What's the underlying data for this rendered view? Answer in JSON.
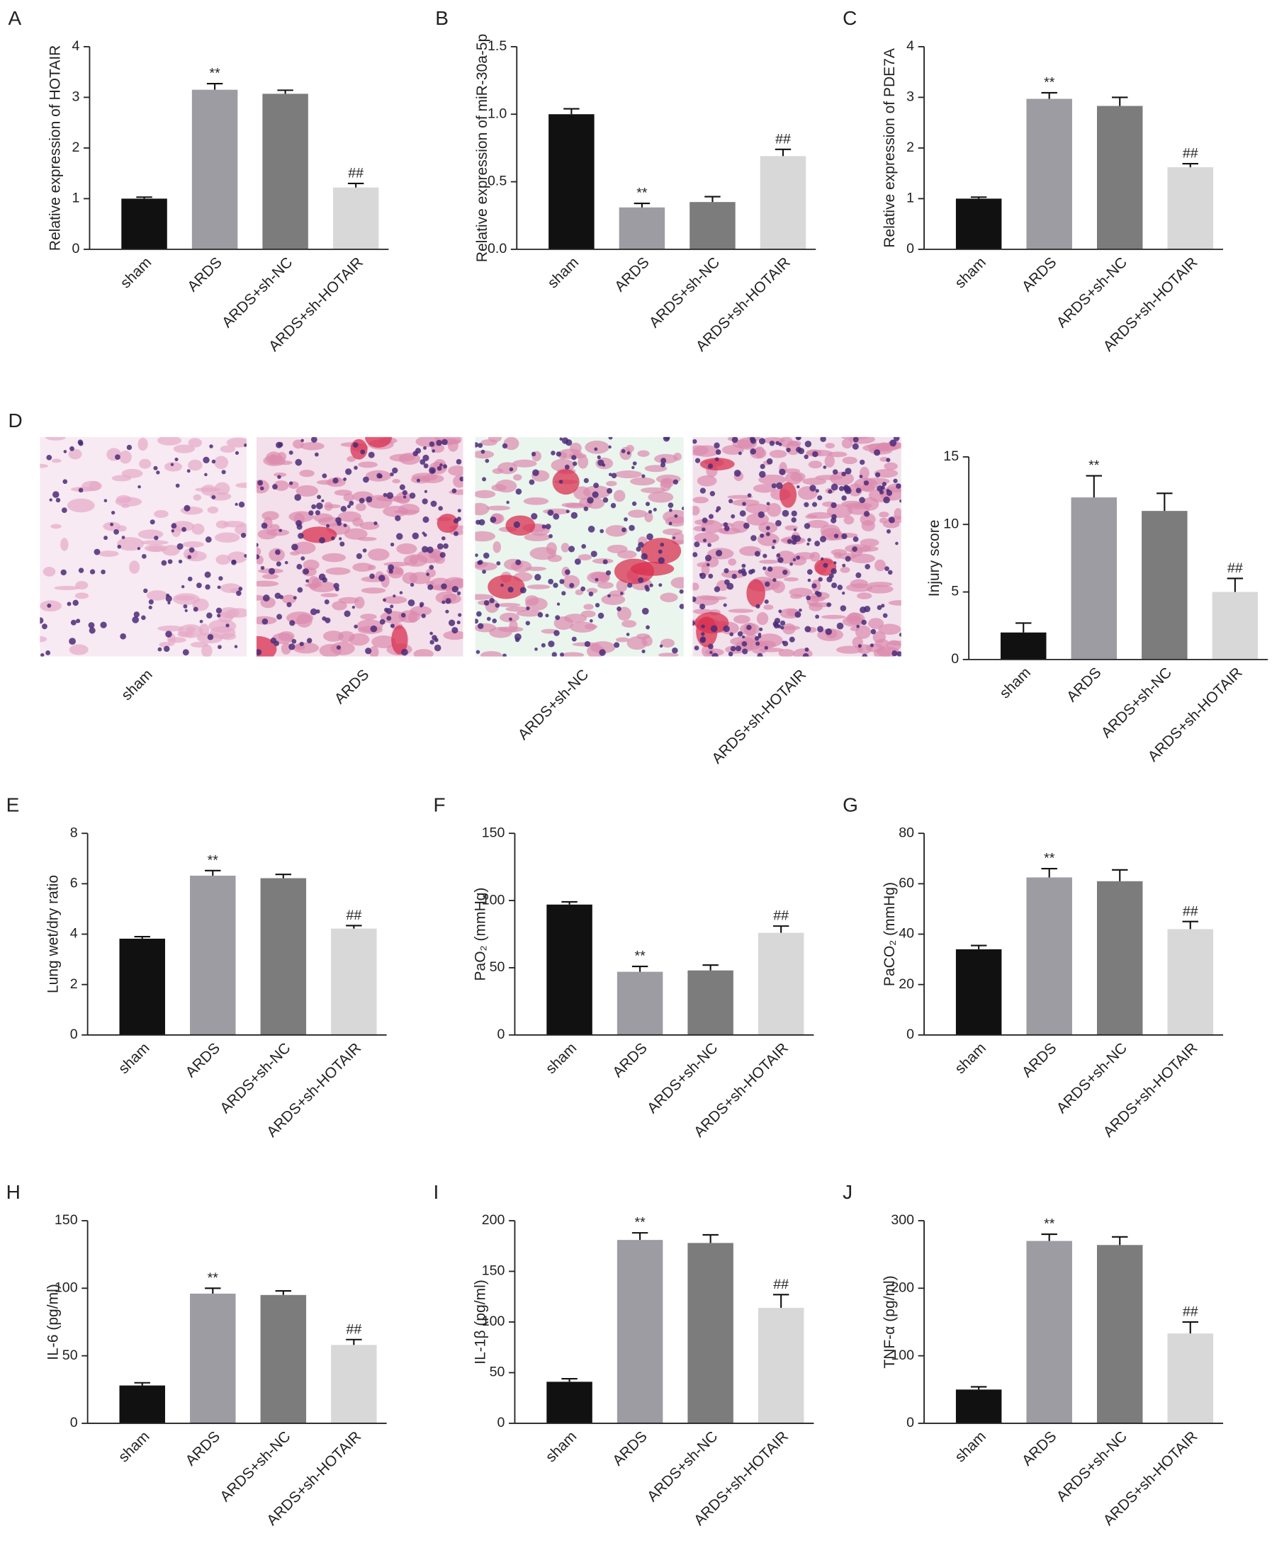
{
  "chart_data": [
    {
      "type": "bar",
      "panel": "A",
      "ylabel": "Relative expression of HOTAIR",
      "categories": [
        "sham",
        "ARDS",
        "ARDS+sh-NC",
        "ARDS+sh-HOTAIR"
      ],
      "values": [
        1.0,
        3.15,
        3.07,
        1.22
      ],
      "errors": [
        0.03,
        0.12,
        0.07,
        0.08
      ],
      "annotations": [
        null,
        "**",
        null,
        "##"
      ],
      "colors": [
        "#111111",
        "#9c9ca2",
        "#7c7c7c",
        "#d8d8d8"
      ],
      "ylim": [
        0,
        4
      ],
      "yticks": [
        0,
        1,
        2,
        3,
        4
      ]
    },
    {
      "type": "bar",
      "panel": "B",
      "ylabel": "Relative expression of miR-30a-5p",
      "categories": [
        "sham",
        "ARDS",
        "ARDS+sh-NC",
        "ARDS+sh-HOTAIR"
      ],
      "values": [
        1.0,
        0.31,
        0.35,
        0.69
      ],
      "errors": [
        0.04,
        0.03,
        0.04,
        0.05
      ],
      "annotations": [
        null,
        "**",
        null,
        "##"
      ],
      "colors": [
        "#111111",
        "#9c9ca2",
        "#7c7c7c",
        "#d8d8d8"
      ],
      "ylim": [
        0,
        1.5
      ],
      "yticks": [
        {
          "value": 0,
          "label": "0.0"
        },
        0.5,
        {
          "value": 1,
          "label": "1.0"
        },
        1.5
      ]
    },
    {
      "type": "bar",
      "panel": "C",
      "ylabel": "Relative expression of PDE7A",
      "categories": [
        "sham",
        "ARDS",
        "ARDS+sh-NC",
        "ARDS+sh-HOTAIR"
      ],
      "values": [
        1.0,
        2.97,
        2.83,
        1.62
      ],
      "errors": [
        0.03,
        0.12,
        0.17,
        0.07
      ],
      "annotations": [
        null,
        "**",
        null,
        "##"
      ],
      "colors": [
        "#111111",
        "#9c9ca2",
        "#7c7c7c",
        "#d8d8d8"
      ],
      "ylim": [
        0,
        4
      ],
      "yticks": [
        0,
        1,
        2,
        3,
        4
      ]
    },
    {
      "type": "bar",
      "ylabel": "Injury score",
      "categories": [
        "sham",
        "ARDS",
        "ARDS+sh-NC",
        "ARDS+sh-HOTAIR"
      ],
      "values": [
        2,
        12,
        11,
        5
      ],
      "errors": [
        0.7,
        1.6,
        1.3,
        1.0
      ],
      "annotations": [
        null,
        "**",
        null,
        "##"
      ],
      "colors": [
        "#111111",
        "#9c9ca2",
        "#7c7c7c",
        "#d8d8d8"
      ],
      "ylim": [
        0,
        15
      ],
      "yticks": [
        0,
        5,
        10,
        15
      ]
    },
    {
      "type": "bar",
      "panel": "E",
      "ylabel": "Lung wet/dry ratio",
      "categories": [
        "sham",
        "ARDS",
        "ARDS+sh-NC",
        "ARDS+sh-HOTAIR"
      ],
      "values": [
        3.82,
        6.32,
        6.22,
        4.22
      ],
      "errors": [
        0.08,
        0.2,
        0.15,
        0.12
      ],
      "annotations": [
        null,
        "**",
        null,
        "##"
      ],
      "colors": [
        "#111111",
        "#9c9ca2",
        "#7c7c7c",
        "#d8d8d8"
      ],
      "ylim": [
        0,
        8
      ],
      "yticks": [
        0,
        2,
        4,
        6,
        8
      ]
    },
    {
      "type": "bar",
      "panel": "F",
      "ylabel": "PaO₂ (mmHg)",
      "categories": [
        "sham",
        "ARDS",
        "ARDS+sh-NC",
        "ARDS+sh-HOTAIR"
      ],
      "values": [
        97,
        47,
        48,
        76
      ],
      "errors": [
        2,
        4,
        4,
        5
      ],
      "annotations": [
        null,
        "**",
        null,
        "##"
      ],
      "colors": [
        "#111111",
        "#9c9ca2",
        "#7c7c7c",
        "#d8d8d8"
      ],
      "ylim": [
        0,
        150
      ],
      "yticks": [
        0,
        50,
        100,
        150
      ]
    },
    {
      "type": "bar",
      "panel": "G",
      "ylabel": "PaCO₂ (mmHg)",
      "categories": [
        "sham",
        "ARDS",
        "ARDS+sh-NC",
        "ARDS+sh-HOTAIR"
      ],
      "values": [
        34,
        62.5,
        61,
        42
      ],
      "errors": [
        1.5,
        3.5,
        4.5,
        3
      ],
      "annotations": [
        null,
        "**",
        null,
        "##"
      ],
      "colors": [
        "#111111",
        "#9c9ca2",
        "#7c7c7c",
        "#d8d8d8"
      ],
      "ylim": [
        0,
        80
      ],
      "yticks": [
        0,
        20,
        40,
        60,
        80
      ]
    },
    {
      "type": "bar",
      "panel": "H",
      "ylabel": "IL-6 (pg/ml)",
      "categories": [
        "sham",
        "ARDS",
        "ARDS+sh-NC",
        "ARDS+sh-HOTAIR"
      ],
      "values": [
        28,
        96,
        95,
        58
      ],
      "errors": [
        2,
        4,
        3,
        4
      ],
      "annotations": [
        null,
        "**",
        null,
        "##"
      ],
      "colors": [
        "#111111",
        "#9c9ca2",
        "#7c7c7c",
        "#d8d8d8"
      ],
      "ylim": [
        0,
        150
      ],
      "yticks": [
        0,
        50,
        100,
        150
      ]
    },
    {
      "type": "bar",
      "panel": "I",
      "ylabel": "IL-1β (pg/ml)",
      "categories": [
        "sham",
        "ARDS",
        "ARDS+sh-NC",
        "ARDS+sh-HOTAIR"
      ],
      "values": [
        41,
        181,
        178,
        114
      ],
      "errors": [
        3,
        7,
        8,
        13
      ],
      "annotations": [
        null,
        "**",
        null,
        "##"
      ],
      "colors": [
        "#111111",
        "#9c9ca2",
        "#7c7c7c",
        "#d8d8d8"
      ],
      "ylim": [
        0,
        200
      ],
      "yticks": [
        0,
        50,
        100,
        150,
        200
      ]
    },
    {
      "type": "bar",
      "panel": "J",
      "ylabel": "TNF-α (pg/ml)",
      "categories": [
        "sham",
        "ARDS",
        "ARDS+sh-NC",
        "ARDS+sh-HOTAIR"
      ],
      "values": [
        50,
        270,
        264,
        133
      ],
      "errors": [
        4,
        10,
        12,
        17
      ],
      "annotations": [
        null,
        "**",
        null,
        "##"
      ],
      "colors": [
        "#111111",
        "#9c9ca2",
        "#7c7c7c",
        "#d8d8d8"
      ],
      "ylim": [
        0,
        300
      ],
      "yticks": [
        0,
        100,
        200,
        300
      ]
    }
  ],
  "micrographs": {
    "panel": "D",
    "labels": [
      "sham",
      "ARDS",
      "ARDS+sh-NC",
      "ARDS+sh-HOTAIR"
    ]
  }
}
